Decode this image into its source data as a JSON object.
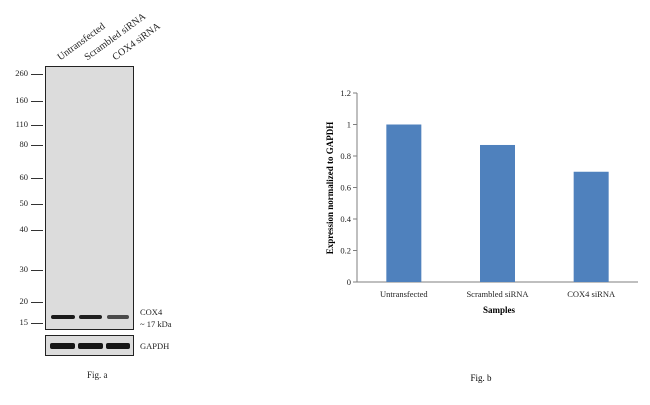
{
  "western_blot": {
    "lanes": [
      "Untransfected",
      "Scrambled siRNA",
      "COX4 siRNA"
    ],
    "mw_markers": [
      "260",
      "160",
      "110",
      "80",
      "60",
      "50",
      "40",
      "30",
      "20",
      "15"
    ],
    "target_label": "COX4",
    "target_size": "~ 17 kDa",
    "loading_control": "GAPDH",
    "caption": "Fig. a"
  },
  "chart_data": {
    "type": "bar",
    "categories": [
      "Untransfected",
      "Scrambled siRNA",
      "COX4 siRNA"
    ],
    "values": [
      1.0,
      0.87,
      0.7
    ],
    "ylim": [
      0,
      1.2
    ],
    "yticks": [
      "0",
      "0.2",
      "0.4",
      "0.6",
      "0.8",
      "1",
      "1.2"
    ],
    "xlabel": "Samples",
    "ylabel": "Expression  normalized to GAPDH",
    "bar_color": "#4f81bd",
    "grid": false,
    "caption": "Fig. b"
  }
}
